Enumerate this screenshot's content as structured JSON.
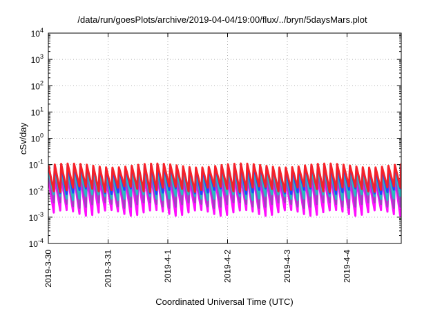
{
  "chart_data": {
    "type": "line",
    "title": "/data/run/goesPlots/archive/2019-04-04/19:00/flux/../bryn/5daysMars.plot",
    "xlabel": "Coordinated Universal Time (UTC)",
    "ylabel": "cSv/day",
    "yscale": "log",
    "ylim": [
      0.0001,
      10000
    ],
    "xlim": [
      "2019-03-30",
      "2019-04-04 19:00"
    ],
    "grid": true,
    "x_ticks": [
      "2019-3-30",
      "2019-3-31",
      "2019-4-1",
      "2019-4-2",
      "2019-4-3",
      "2019-4-4"
    ],
    "y_ticks": [
      {
        "base": "10",
        "exp": "4"
      },
      {
        "base": "10",
        "exp": "3"
      },
      {
        "base": "10",
        "exp": "2"
      },
      {
        "base": "10",
        "exp": "1"
      },
      {
        "base": "10",
        "exp": "0"
      },
      {
        "base": "10",
        "exp": "-1"
      },
      {
        "base": "10",
        "exp": "-2"
      },
      {
        "base": "10",
        "exp": "-3"
      },
      {
        "base": "10",
        "exp": "-4"
      }
    ],
    "series": [
      {
        "color": "#ff2020",
        "peak": 0.11,
        "trough": 0.012
      },
      {
        "color": "#2040ff",
        "peak": 0.1,
        "trough": 0.01
      },
      {
        "color": "#20c0c0",
        "peak": 0.07,
        "trough": 0.006
      },
      {
        "color": "#a040c0",
        "peak": 0.05,
        "trough": 0.003
      },
      {
        "color": "#ff00ff",
        "peak": 0.035,
        "trough": 0.0015
      }
    ],
    "sawtooth_cycles": 55
  }
}
